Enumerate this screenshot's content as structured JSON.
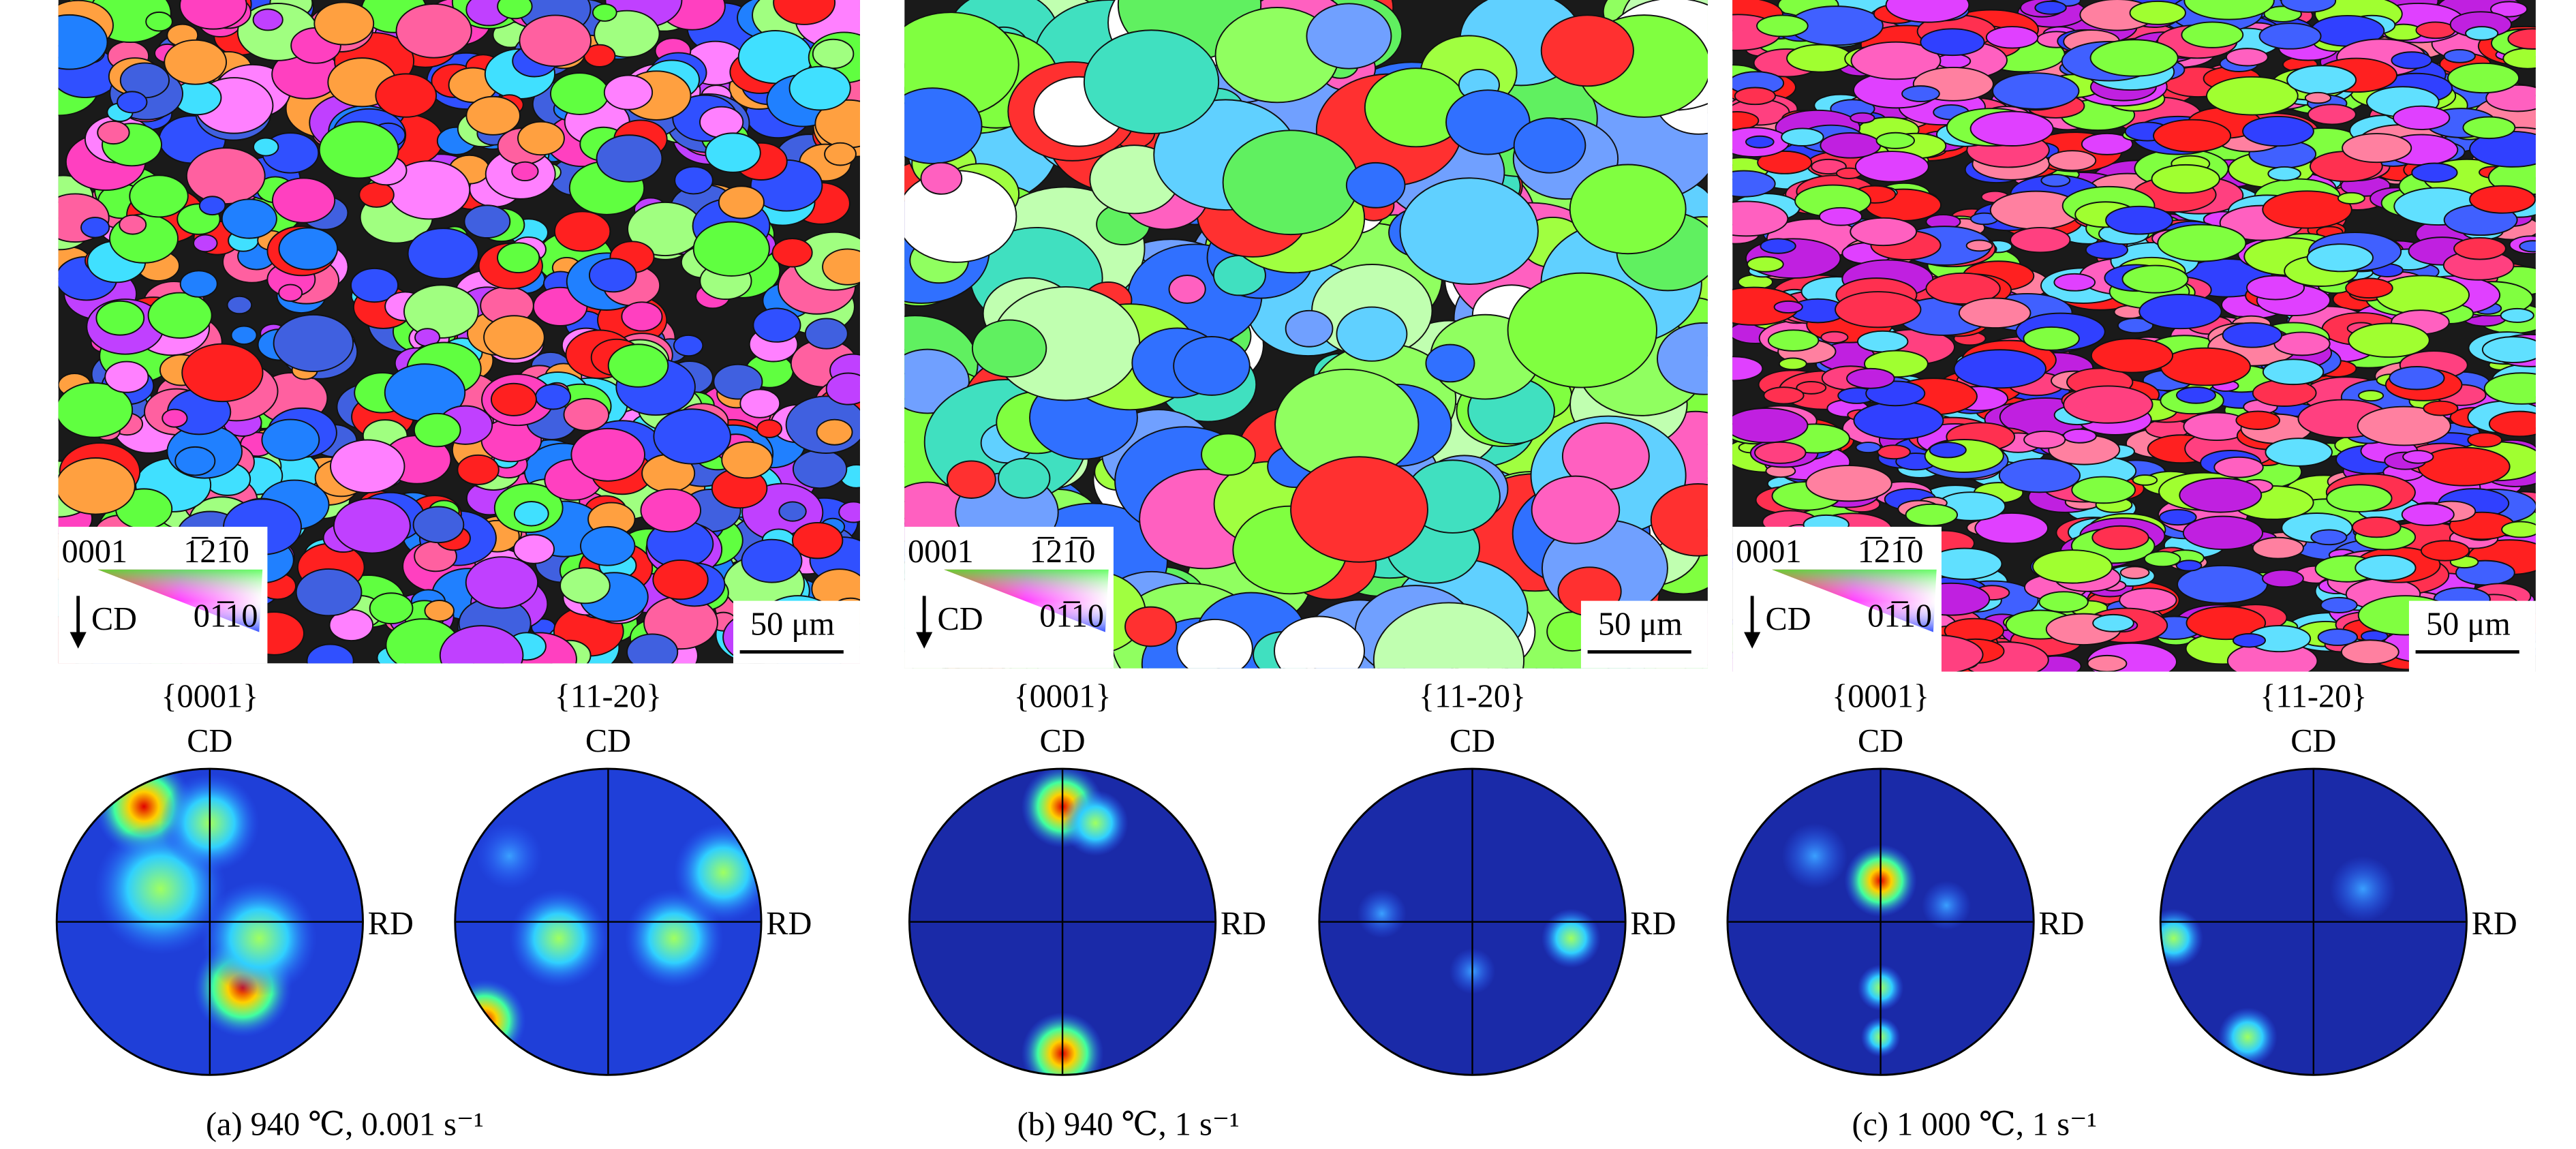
{
  "panels": [
    {
      "legend": {
        "top_left": "0001",
        "top_right": "1̅21̅0",
        "bottom": "01̅10",
        "direction": "CD"
      },
      "scale_bar": "50 μm",
      "pole_figures": [
        {
          "plane": "{0001}",
          "top": "CD",
          "right": "RD"
        },
        {
          "plane": "{11-20}",
          "top": "CD",
          "right": "RD"
        }
      ],
      "caption": "(a) 940 ℃, 0.001 s⁻¹"
    },
    {
      "legend": {
        "top_left": "0001",
        "top_right": "1̅21̅0",
        "bottom": "01̅10",
        "direction": "CD"
      },
      "scale_bar": "50 μm",
      "pole_figures": [
        {
          "plane": "{0001}",
          "top": "CD",
          "right": "RD"
        },
        {
          "plane": "{11-20}",
          "top": "CD",
          "right": "RD"
        }
      ],
      "caption": "(b) 940 ℃, 1 s⁻¹"
    },
    {
      "legend": {
        "top_left": "0001",
        "top_right": "1̅21̅0",
        "bottom": "01̅10",
        "direction": "CD"
      },
      "scale_bar": "50 μm",
      "pole_figures": [
        {
          "plane": "{0001}",
          "top": "CD",
          "right": "RD"
        },
        {
          "plane": "{11-20}",
          "top": "CD",
          "right": "RD"
        }
      ],
      "caption": "(c) 1 000 ℃, 1 s⁻¹"
    }
  ]
}
